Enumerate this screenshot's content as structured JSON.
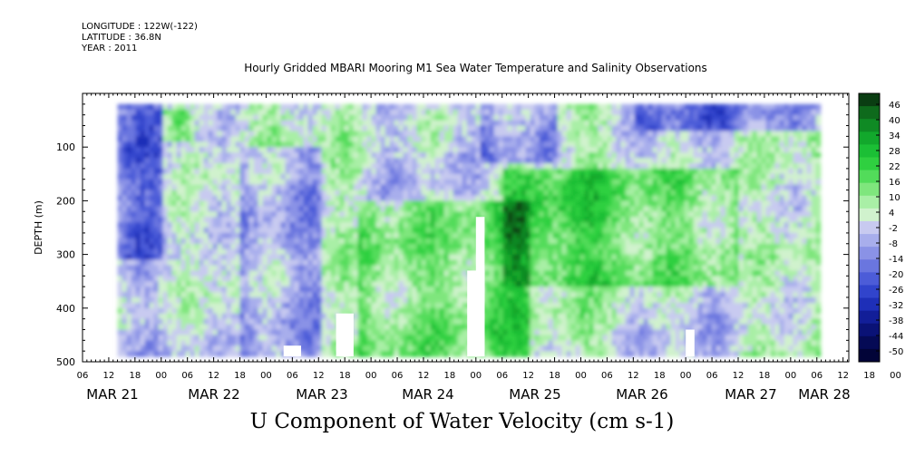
{
  "header": {
    "longitude": "LONGITUDE : 122W(-122)",
    "latitude": "LATITUDE : 36.8N",
    "year": "YEAR : 2011"
  },
  "title": "Hourly Gridded MBARI Mooring M1 Sea Water Temperature and Salinity Observations",
  "caption": "U Component of Water Velocity (cm s-1)",
  "chart_data": {
    "type": "heatmap",
    "ylabel": "DEPTH (m)",
    "ylim": [
      500,
      0
    ],
    "y_ticks": [
      100,
      200,
      300,
      400,
      500
    ],
    "y_tick_labels": [
      "100",
      "200",
      "300",
      "400",
      "500"
    ],
    "x_hour_labels": [
      "06",
      "12",
      "18",
      "00",
      "06",
      "12",
      "18",
      "00",
      "06",
      "12",
      "18",
      "00",
      "06",
      "12",
      "18",
      "00",
      "06",
      "12",
      "18",
      "00",
      "06",
      "12",
      "18",
      "00",
      "06",
      "12",
      "18",
      "00",
      "06",
      "12",
      "18",
      "00",
      "06",
      "12",
      "18",
      "00",
      "06"
    ],
    "x_day_labels": [
      "MAR 21",
      "MAR 22",
      "MAR 23",
      "MAR 24",
      "MAR 25",
      "MAR 26",
      "MAR 27",
      "MAR 28"
    ],
    "data_start": "MAR 21 14:00",
    "data_end": "MAR 28 06:00",
    "depth_range": [
      20,
      490
    ],
    "colorbar": {
      "labels": [
        "46",
        "40",
        "34",
        "28",
        "22",
        "16",
        "10",
        "4",
        "-2",
        "-8",
        "-14",
        "-20",
        "-26",
        "-32",
        "-38",
        "-44",
        "-50"
      ],
      "colors_top_to_bottom": [
        "#0a3d12",
        "#0e6a1c",
        "#0f8a24",
        "#12a82c",
        "#1bbf35",
        "#2fd040",
        "#52dc5a",
        "#7fe67d",
        "#a9efa6",
        "#d0f2cd",
        "#c8caf0",
        "#a8aeec",
        "#8a92e6",
        "#6a76df",
        "#4c5cd8",
        "#3144cc",
        "#1e2fb8",
        "#121e98",
        "#0a1276",
        "#050a55",
        "#020438"
      ]
    },
    "patterns": {
      "strong_positive": [
        {
          "time_start": "MAR 23 20:00",
          "time_end": "MAR 25 12:00",
          "depth_start": 200,
          "depth_end": 490
        },
        {
          "time_start": "MAR 25 06:00",
          "time_end": "MAR 27 12:00",
          "depth_start": 140,
          "depth_end": 350
        },
        {
          "time_start": "MAR 22 00:00",
          "time_end": "MAR 22 06:00",
          "depth_start": 30,
          "depth_end": 80
        }
      ],
      "negative": [
        {
          "time_start": "MAR 21 14:00",
          "time_end": "MAR 22 00:00",
          "depth_start": 20,
          "depth_end": 300
        },
        {
          "time_start": "MAR 22 18:00",
          "time_end": "MAR 23 12:00",
          "depth_start": 100,
          "depth_end": 490
        },
        {
          "time_start": "MAR 25 00:00",
          "time_end": "MAR 25 18:00",
          "depth_start": 20,
          "depth_end": 120
        },
        {
          "time_start": "MAR 26 12:00",
          "time_end": "MAR 28 06:00",
          "depth_start": 20,
          "depth_end": 60
        }
      ]
    },
    "data_gaps": [
      {
        "time_start": "MAR 23 04:00",
        "time_end": "MAR 23 08:00",
        "depth_start": 470,
        "depth_end": 490
      },
      {
        "time_start": "MAR 23 16:00",
        "time_end": "MAR 23 20:00",
        "depth_start": 410,
        "depth_end": 490
      },
      {
        "time_start": "MAR 24 22:00",
        "time_end": "MAR 25 02:00",
        "depth_start": 330,
        "depth_end": 490
      },
      {
        "time_start": "MAR 25 00:00",
        "time_end": "MAR 25 02:00",
        "depth_start": 230,
        "depth_end": 490
      },
      {
        "time_start": "MAR 27 00:00",
        "time_end": "MAR 27 02:00",
        "depth_start": 440,
        "depth_end": 490
      }
    ]
  }
}
